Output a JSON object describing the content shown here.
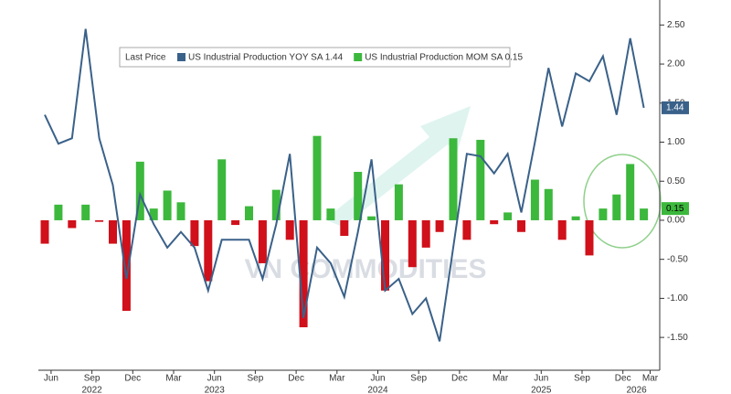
{
  "chart_data": {
    "type": "combo",
    "legend_title": "Last Price",
    "watermark": "VN COMMODITIES",
    "categories": [
      null,
      "Jun",
      null,
      null,
      "Sep",
      null,
      null,
      "Dec",
      null,
      null,
      "Mar",
      null,
      null,
      "Jun",
      null,
      null,
      "Sep",
      null,
      null,
      "Dec",
      null,
      null,
      "Mar",
      null,
      null,
      "Jun",
      null,
      null,
      "Sep",
      null,
      null,
      "Dec",
      null,
      null,
      "Mar",
      null,
      null,
      "Jun",
      null,
      null,
      "Sep",
      null,
      null,
      "Dec",
      null,
      "Mar"
    ],
    "year_labels": [
      null,
      null,
      null,
      null,
      "2022",
      null,
      null,
      null,
      null,
      null,
      null,
      null,
      null,
      "2023",
      null,
      null,
      null,
      null,
      null,
      null,
      null,
      null,
      null,
      null,
      null,
      "2024",
      null,
      null,
      null,
      null,
      null,
      null,
      null,
      null,
      null,
      null,
      null,
      "2025",
      null,
      null,
      null,
      null,
      null,
      null,
      "2026",
      null
    ],
    "series": [
      {
        "name": "US Industrial Production YOY SA 1.44",
        "type": "line",
        "color": "#3a6189",
        "values": [
          1.35,
          0.98,
          1.05,
          2.45,
          1.05,
          0.45,
          -0.75,
          0.33,
          -0.05,
          -0.35,
          -0.15,
          -0.35,
          -0.9,
          -0.25,
          -0.25,
          -0.25,
          -0.75,
          -0.05,
          0.85,
          -1.25,
          -0.35,
          -0.55,
          -0.98,
          -0.15,
          0.78,
          -0.9,
          -0.75,
          -1.2,
          -1.0,
          -1.55,
          -0.35,
          0.85,
          0.82,
          0.6,
          0.85,
          0.1,
          1.0,
          1.95,
          1.2,
          1.88,
          1.78,
          2.1,
          1.35,
          2.33,
          1.44,
          null
        ]
      },
      {
        "name": "US Industrial Production MOM SA 0.15",
        "type": "bar",
        "color": "#3cb83c",
        "negative_color": "#d0101a",
        "values": [
          -0.3,
          0.2,
          -0.1,
          0.2,
          -0.02,
          -0.3,
          -1.16,
          0.75,
          0.15,
          0.38,
          0.23,
          -0.33,
          -0.78,
          0.78,
          -0.06,
          0.18,
          -0.55,
          0.39,
          -0.25,
          -1.37,
          1.08,
          0.15,
          -0.2,
          0.62,
          0.05,
          -0.9,
          0.46,
          -0.6,
          -0.35,
          -0.15,
          1.05,
          -0.25,
          1.03,
          -0.05,
          0.1,
          -0.15,
          0.52,
          0.4,
          -0.25,
          0.05,
          -0.45,
          0.15,
          0.33,
          0.72,
          0.15,
          null
        ]
      }
    ],
    "ylim": [
      -1.92,
      2.82
    ],
    "yticks": [
      {
        "value": -1.5,
        "label": "-1.50"
      },
      {
        "value": -1,
        "label": "-1.00"
      },
      {
        "value": -0.5,
        "label": "-0.50"
      },
      {
        "value": 0,
        "label": "0.00"
      },
      {
        "value": 0.5,
        "label": "0.50"
      },
      {
        "value": 1,
        "label": "1.00"
      },
      {
        "value": 1.5,
        "label": "1.50"
      },
      {
        "value": 2,
        "label": "2.00"
      },
      {
        "value": 2.5,
        "label": "2.50"
      }
    ],
    "grid": false
  }
}
